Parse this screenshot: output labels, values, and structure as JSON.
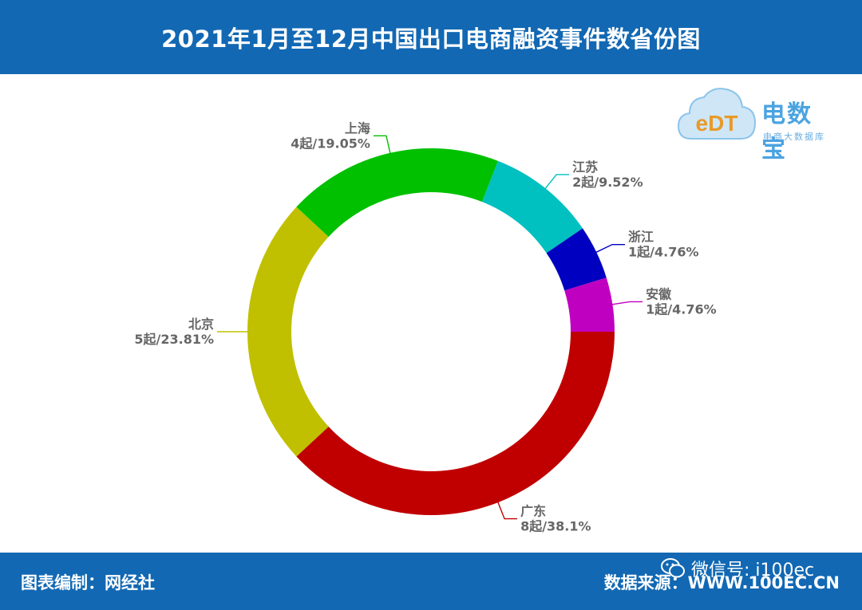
{
  "header": {
    "title": "2021年1月至12月中国出口电商融资事件数省份图"
  },
  "logo": {
    "name": "电数宝",
    "subtitle": "电商大数据库",
    "badge": "eDT"
  },
  "chart_data": {
    "type": "pie",
    "variant": "donut",
    "slices": [
      {
        "province": "广东",
        "count": 8,
        "percent": 38.1,
        "value_label": "8起/38.1%",
        "color": "#c00000"
      },
      {
        "province": "北京",
        "count": 5,
        "percent": 23.81,
        "value_label": "5起/23.81%",
        "color": "#c0c000"
      },
      {
        "province": "上海",
        "count": 4,
        "percent": 19.05,
        "value_label": "4起/19.05%",
        "color": "#00c000"
      },
      {
        "province": "江苏",
        "count": 2,
        "percent": 9.52,
        "value_label": "2起/9.52%",
        "color": "#00c0c0"
      },
      {
        "province": "浙江",
        "count": 1,
        "percent": 4.76,
        "value_label": "1起/4.76%",
        "color": "#0000c0"
      },
      {
        "province": "安徽",
        "count": 1,
        "percent": 4.76,
        "value_label": "1起/4.76%",
        "color": "#c000c0"
      }
    ]
  },
  "footer": {
    "credit": "图表编制：网经社",
    "source": "数据来源：WWW.100EC.CN",
    "wechat": "微信号: i100ec"
  },
  "colors": {
    "header_bg": "#1268b3",
    "footer_bg": "#1268b3",
    "label_text": "#666666"
  }
}
